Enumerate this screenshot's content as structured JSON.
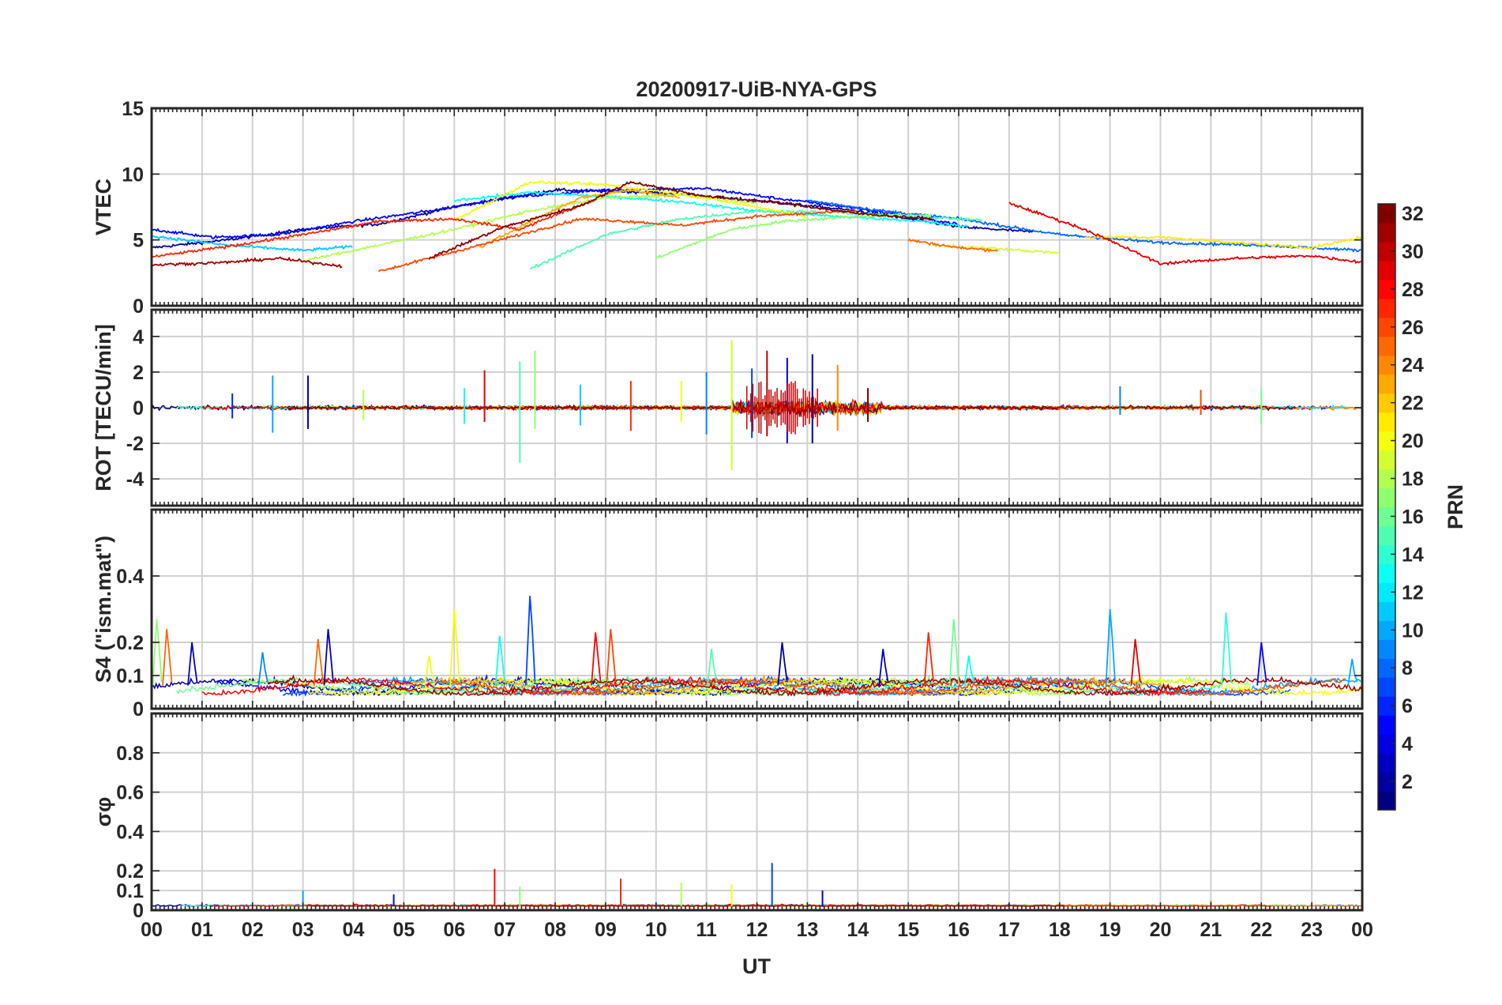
{
  "figure": {
    "title": "20200917-UiB-NYA-GPS"
  },
  "chart_data": [
    {
      "type": "line",
      "panel": "vtec",
      "ylabel": "VTEC",
      "ylim": [
        0,
        15
      ],
      "yticks": [
        0,
        5,
        10,
        15
      ],
      "xlim": [
        0,
        24
      ],
      "grid": true,
      "series_note_values": "approximate traces per PRN, values in TECU vs UT hour",
      "series": [
        {
          "prn": 2,
          "values": [
            [
              0,
              4.4
            ],
            [
              1.5,
              5
            ],
            [
              3,
              5.8
            ],
            [
              4.5,
              6.2
            ],
            [
              6,
              7.5
            ],
            [
              8,
              8.8
            ],
            [
              10,
              8.6
            ],
            [
              12,
              8
            ],
            [
              14,
              7.2
            ],
            [
              16,
              6
            ],
            [
              17.5,
              5.6
            ]
          ]
        },
        {
          "prn": 5,
          "values": [
            [
              0,
              5.8
            ],
            [
              1.2,
              5.2
            ],
            [
              2.5,
              5.4
            ],
            [
              4,
              6.4
            ],
            [
              5.5,
              7.2
            ],
            [
              7,
              8.2
            ],
            [
              9,
              8.8
            ],
            [
              11,
              8.9
            ],
            [
              12.3,
              8.2
            ],
            [
              14,
              7.4
            ],
            [
              16,
              6.2
            ]
          ]
        },
        {
          "prn": 8,
          "values": [
            [
              13,
              8
            ],
            [
              14.5,
              7.2
            ],
            [
              16,
              6.6
            ],
            [
              18,
              5.4
            ],
            [
              20,
              4.8
            ],
            [
              22,
              4.6
            ],
            [
              24,
              4.2
            ]
          ]
        },
        {
          "prn": 11,
          "values": [
            [
              0,
              5.3
            ],
            [
              1.5,
              4.6
            ],
            [
              3,
              4.2
            ],
            [
              4,
              4.5
            ]
          ]
        },
        {
          "prn": 13,
          "values": [
            [
              6,
              8
            ],
            [
              7.5,
              8.6
            ],
            [
              9,
              8.3
            ],
            [
              10.5,
              7.9
            ],
            [
              12,
              7.2
            ],
            [
              13.5,
              6.8
            ],
            [
              15,
              6.5
            ],
            [
              16.2,
              6
            ]
          ]
        },
        {
          "prn": 15,
          "values": [
            [
              7.5,
              2.8
            ],
            [
              8.2,
              4
            ],
            [
              9,
              5.4
            ],
            [
              10.5,
              6.6
            ],
            [
              12,
              7.2
            ],
            [
              13.5,
              7.1
            ],
            [
              15,
              6.8
            ],
            [
              16.5,
              6.5
            ]
          ]
        },
        {
          "prn": 17,
          "values": [
            [
              10,
              3.6
            ],
            [
              10.8,
              4.8
            ],
            [
              11.5,
              5.8
            ],
            [
              12.5,
              6.4
            ],
            [
              14,
              6.8
            ],
            [
              15.5,
              6.9
            ]
          ]
        },
        {
          "prn": 18,
          "values": [
            [
              3,
              3.4
            ],
            [
              4.5,
              4.6
            ],
            [
              6,
              5.8
            ],
            [
              7.5,
              7.2
            ],
            [
              9,
              8.2
            ],
            [
              10.5,
              8.4
            ],
            [
              12,
              7.8
            ]
          ]
        },
        {
          "prn": 19,
          "values": [
            [
              15.5,
              4.6
            ],
            [
              16.5,
              4.4
            ],
            [
              18,
              4
            ]
          ]
        },
        {
          "prn": 20,
          "values": [
            [
              6,
              6.5
            ],
            [
              7.5,
              9.4
            ],
            [
              9,
              9.2
            ],
            [
              10.5,
              8.5
            ],
            [
              12,
              7.5
            ],
            [
              13,
              6.8
            ]
          ]
        },
        {
          "prn": 21,
          "values": [
            [
              18.5,
              5.2
            ],
            [
              20,
              5.2
            ],
            [
              21.5,
              4.8
            ],
            [
              23,
              4.4
            ],
            [
              24,
              5.2
            ]
          ]
        },
        {
          "prn": 23,
          "values": [
            [
              6.5,
              4.4
            ],
            [
              7.5,
              6.4
            ],
            [
              8.5,
              8.2
            ],
            [
              9.5,
              8.8
            ],
            [
              10.5,
              8.2
            ]
          ]
        },
        {
          "prn": 25,
          "values": [
            [
              15,
              5
            ],
            [
              16,
              4.4
            ],
            [
              16.8,
              4.2
            ]
          ]
        },
        {
          "prn": 26,
          "values": [
            [
              4.5,
              2.6
            ],
            [
              5.5,
              3.6
            ],
            [
              6.5,
              4.6
            ],
            [
              7.5,
              5.6
            ],
            [
              8.5,
              6.6
            ],
            [
              9.5,
              6.4
            ],
            [
              10.5,
              6.1
            ],
            [
              12,
              6.8
            ],
            [
              14,
              7.2
            ]
          ]
        },
        {
          "prn": 27,
          "values": [
            [
              0,
              3.7
            ],
            [
              1.5,
              4.5
            ],
            [
              3,
              5.4
            ],
            [
              4.5,
              6.4
            ],
            [
              6,
              6.6
            ],
            [
              7.3,
              5.8
            ],
            [
              8,
              6.9
            ],
            [
              8.8,
              8
            ]
          ]
        },
        {
          "prn": 29,
          "values": [
            [
              17,
              7.8
            ],
            [
              18.5,
              5.8
            ],
            [
              20,
              3.2
            ],
            [
              21.5,
              3.6
            ],
            [
              23,
              3.8
            ],
            [
              24,
              3.3
            ]
          ]
        },
        {
          "prn": 31,
          "values": [
            [
              0,
              3.1
            ],
            [
              1.5,
              3.3
            ],
            [
              2.5,
              3.6
            ],
            [
              3.8,
              3
            ]
          ]
        },
        {
          "prn": 32,
          "values": [
            [
              5.5,
              3.6
            ],
            [
              7,
              6
            ],
            [
              8.5,
              7.6
            ],
            [
              9.5,
              9.4
            ],
            [
              11,
              8.3
            ],
            [
              12.5,
              7.8
            ],
            [
              14,
              7
            ],
            [
              15.5,
              6.6
            ]
          ]
        }
      ]
    },
    {
      "type": "line",
      "panel": "rot",
      "ylabel": "ROT [TECU/min]",
      "ylim": [
        -5.5,
        5.5
      ],
      "yticks": [
        -4,
        -2,
        0,
        2,
        4
      ],
      "xlim": [
        0,
        24
      ],
      "grid": true,
      "spikes": [
        {
          "x": 1.6,
          "up": 0.8,
          "down": -0.6,
          "prn": 6
        },
        {
          "x": 2.4,
          "up": 1.8,
          "down": -1.4,
          "prn": 10
        },
        {
          "x": 3.1,
          "up": 1.8,
          "down": -1.2,
          "prn": 3
        },
        {
          "x": 4.2,
          "up": 1,
          "down": -0.7,
          "prn": 18
        },
        {
          "x": 6.2,
          "up": 1.1,
          "down": -0.9,
          "prn": 13
        },
        {
          "x": 6.6,
          "up": 2.1,
          "down": -0.8,
          "prn": 29
        },
        {
          "x": 7.3,
          "up": 2.6,
          "down": -3.1,
          "prn": 15
        },
        {
          "x": 7.6,
          "up": 3.2,
          "down": -1.2,
          "prn": 17
        },
        {
          "x": 8.5,
          "up": 1.3,
          "down": -1,
          "prn": 11
        },
        {
          "x": 9.5,
          "up": 1.5,
          "down": -1.3,
          "prn": 27
        },
        {
          "x": 10.5,
          "up": 1.5,
          "down": -0.8,
          "prn": 20
        },
        {
          "x": 11.0,
          "up": 2,
          "down": -1.5,
          "prn": 9
        },
        {
          "x": 11.5,
          "up": 3.8,
          "down": -3.5,
          "prn": 19
        },
        {
          "x": 11.9,
          "up": 2.2,
          "down": -1.7,
          "prn": 7
        },
        {
          "x": 12.2,
          "up": 3.2,
          "down": -1.6,
          "prn": 30
        },
        {
          "x": 12.6,
          "up": 2.8,
          "down": -2,
          "prn": 4
        },
        {
          "x": 13.1,
          "up": 3,
          "down": -2,
          "prn": 2
        },
        {
          "x": 13.6,
          "up": 2.4,
          "down": -1.3,
          "prn": 24
        },
        {
          "x": 14.2,
          "up": 1.1,
          "down": -0.8,
          "prn": 32
        },
        {
          "x": 19.2,
          "up": 1.2,
          "down": -0.4,
          "prn": 9
        },
        {
          "x": 20.8,
          "up": 1,
          "down": -0.4,
          "prn": 26
        },
        {
          "x": 22.0,
          "up": 1.1,
          "down": -0.9,
          "prn": 16
        }
      ]
    },
    {
      "type": "line",
      "panel": "s4",
      "ylabel": "S4 (\"ism.mat\")",
      "ylim": [
        0,
        0.6
      ],
      "yticks": [
        0,
        0.1,
        0.2,
        0.4
      ],
      "xlim": [
        0,
        24
      ],
      "grid": true,
      "peaks": [
        {
          "x": 0.1,
          "y": 0.27,
          "prn": 17
        },
        {
          "x": 0.3,
          "y": 0.24,
          "prn": 25
        },
        {
          "x": 0.8,
          "y": 0.2,
          "prn": 3
        },
        {
          "x": 2.2,
          "y": 0.17,
          "prn": 9
        },
        {
          "x": 3.3,
          "y": 0.21,
          "prn": 25
        },
        {
          "x": 3.5,
          "y": 0.24,
          "prn": 3
        },
        {
          "x": 5.5,
          "y": 0.16,
          "prn": 20
        },
        {
          "x": 6,
          "y": 0.3,
          "prn": 20
        },
        {
          "x": 6.9,
          "y": 0.22,
          "prn": 13
        },
        {
          "x": 7.5,
          "y": 0.34,
          "prn": 7
        },
        {
          "x": 8.8,
          "y": 0.23,
          "prn": 28
        },
        {
          "x": 9.1,
          "y": 0.24,
          "prn": 26
        },
        {
          "x": 11.1,
          "y": 0.18,
          "prn": 15
        },
        {
          "x": 12.5,
          "y": 0.2,
          "prn": 2
        },
        {
          "x": 14.5,
          "y": 0.18,
          "prn": 3
        },
        {
          "x": 15.4,
          "y": 0.23,
          "prn": 27
        },
        {
          "x": 15.9,
          "y": 0.27,
          "prn": 16
        },
        {
          "x": 16.2,
          "y": 0.16,
          "prn": 13
        },
        {
          "x": 19,
          "y": 0.3,
          "prn": 10
        },
        {
          "x": 19.5,
          "y": 0.21,
          "prn": 29
        },
        {
          "x": 21.3,
          "y": 0.29,
          "prn": 14
        },
        {
          "x": 22.0,
          "y": 0.2,
          "prn": 5
        },
        {
          "x": 23.8,
          "y": 0.15,
          "prn": 10
        }
      ]
    },
    {
      "type": "line",
      "panel": "sigma_phi",
      "ylabel": "σφ",
      "ylim": [
        0,
        1
      ],
      "yticks": [
        0,
        0.1,
        0.2,
        0.4,
        0.6,
        0.8
      ],
      "xlim": [
        0,
        24
      ],
      "xlabel": "UT",
      "xticks": [
        "00",
        "01",
        "02",
        "03",
        "04",
        "05",
        "06",
        "07",
        "08",
        "09",
        "10",
        "11",
        "12",
        "13",
        "14",
        "15",
        "16",
        "17",
        "18",
        "19",
        "20",
        "21",
        "22",
        "23",
        "00"
      ],
      "grid": true,
      "peaks": [
        {
          "x": 3.0,
          "y": 0.1,
          "prn": 10
        },
        {
          "x": 4.8,
          "y": 0.08,
          "prn": 5
        },
        {
          "x": 6.8,
          "y": 0.21,
          "prn": 28
        },
        {
          "x": 7.3,
          "y": 0.12,
          "prn": 17
        },
        {
          "x": 9.3,
          "y": 0.16,
          "prn": 27
        },
        {
          "x": 10.5,
          "y": 0.14,
          "prn": 18
        },
        {
          "x": 11.5,
          "y": 0.13,
          "prn": 20
        },
        {
          "x": 12.3,
          "y": 0.24,
          "prn": 7
        },
        {
          "x": 13.3,
          "y": 0.1,
          "prn": 4
        },
        {
          "x": 21.0,
          "y": 0.05,
          "prn": 24
        }
      ]
    }
  ],
  "colorbar": {
    "label": "PRN",
    "range": [
      1,
      32
    ],
    "ticks": [
      "2",
      "4",
      "6",
      "8",
      "10",
      "12",
      "14",
      "16",
      "18",
      "20",
      "22",
      "24",
      "26",
      "28",
      "30",
      "32"
    ],
    "colormap": "jet"
  }
}
